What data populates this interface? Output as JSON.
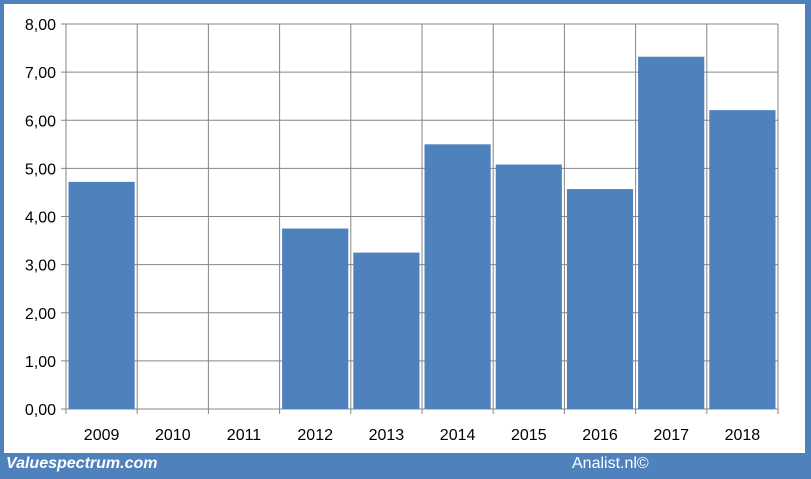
{
  "chart_data": {
    "type": "bar",
    "title": "",
    "xlabel": "",
    "ylabel": "",
    "categories": [
      "2009",
      "2010",
      "2011",
      "2012",
      "2013",
      "2014",
      "2015",
      "2016",
      "2017",
      "2018"
    ],
    "values": [
      4.72,
      0,
      0,
      3.75,
      3.25,
      5.5,
      5.08,
      4.57,
      7.32,
      6.21
    ],
    "ylim": [
      0,
      8
    ],
    "yticks": [
      "0,00",
      "1,00",
      "2,00",
      "3,00",
      "4,00",
      "5,00",
      "6,00",
      "7,00",
      "8,00"
    ],
    "grid": true,
    "legend": "none",
    "bar_color": "#4f81bd"
  },
  "footer": {
    "source_left": "Valuespectrum.com",
    "source_right": "Analist.nl©"
  },
  "colors": {
    "frame": "#4f81bd",
    "grid": "#868686"
  }
}
